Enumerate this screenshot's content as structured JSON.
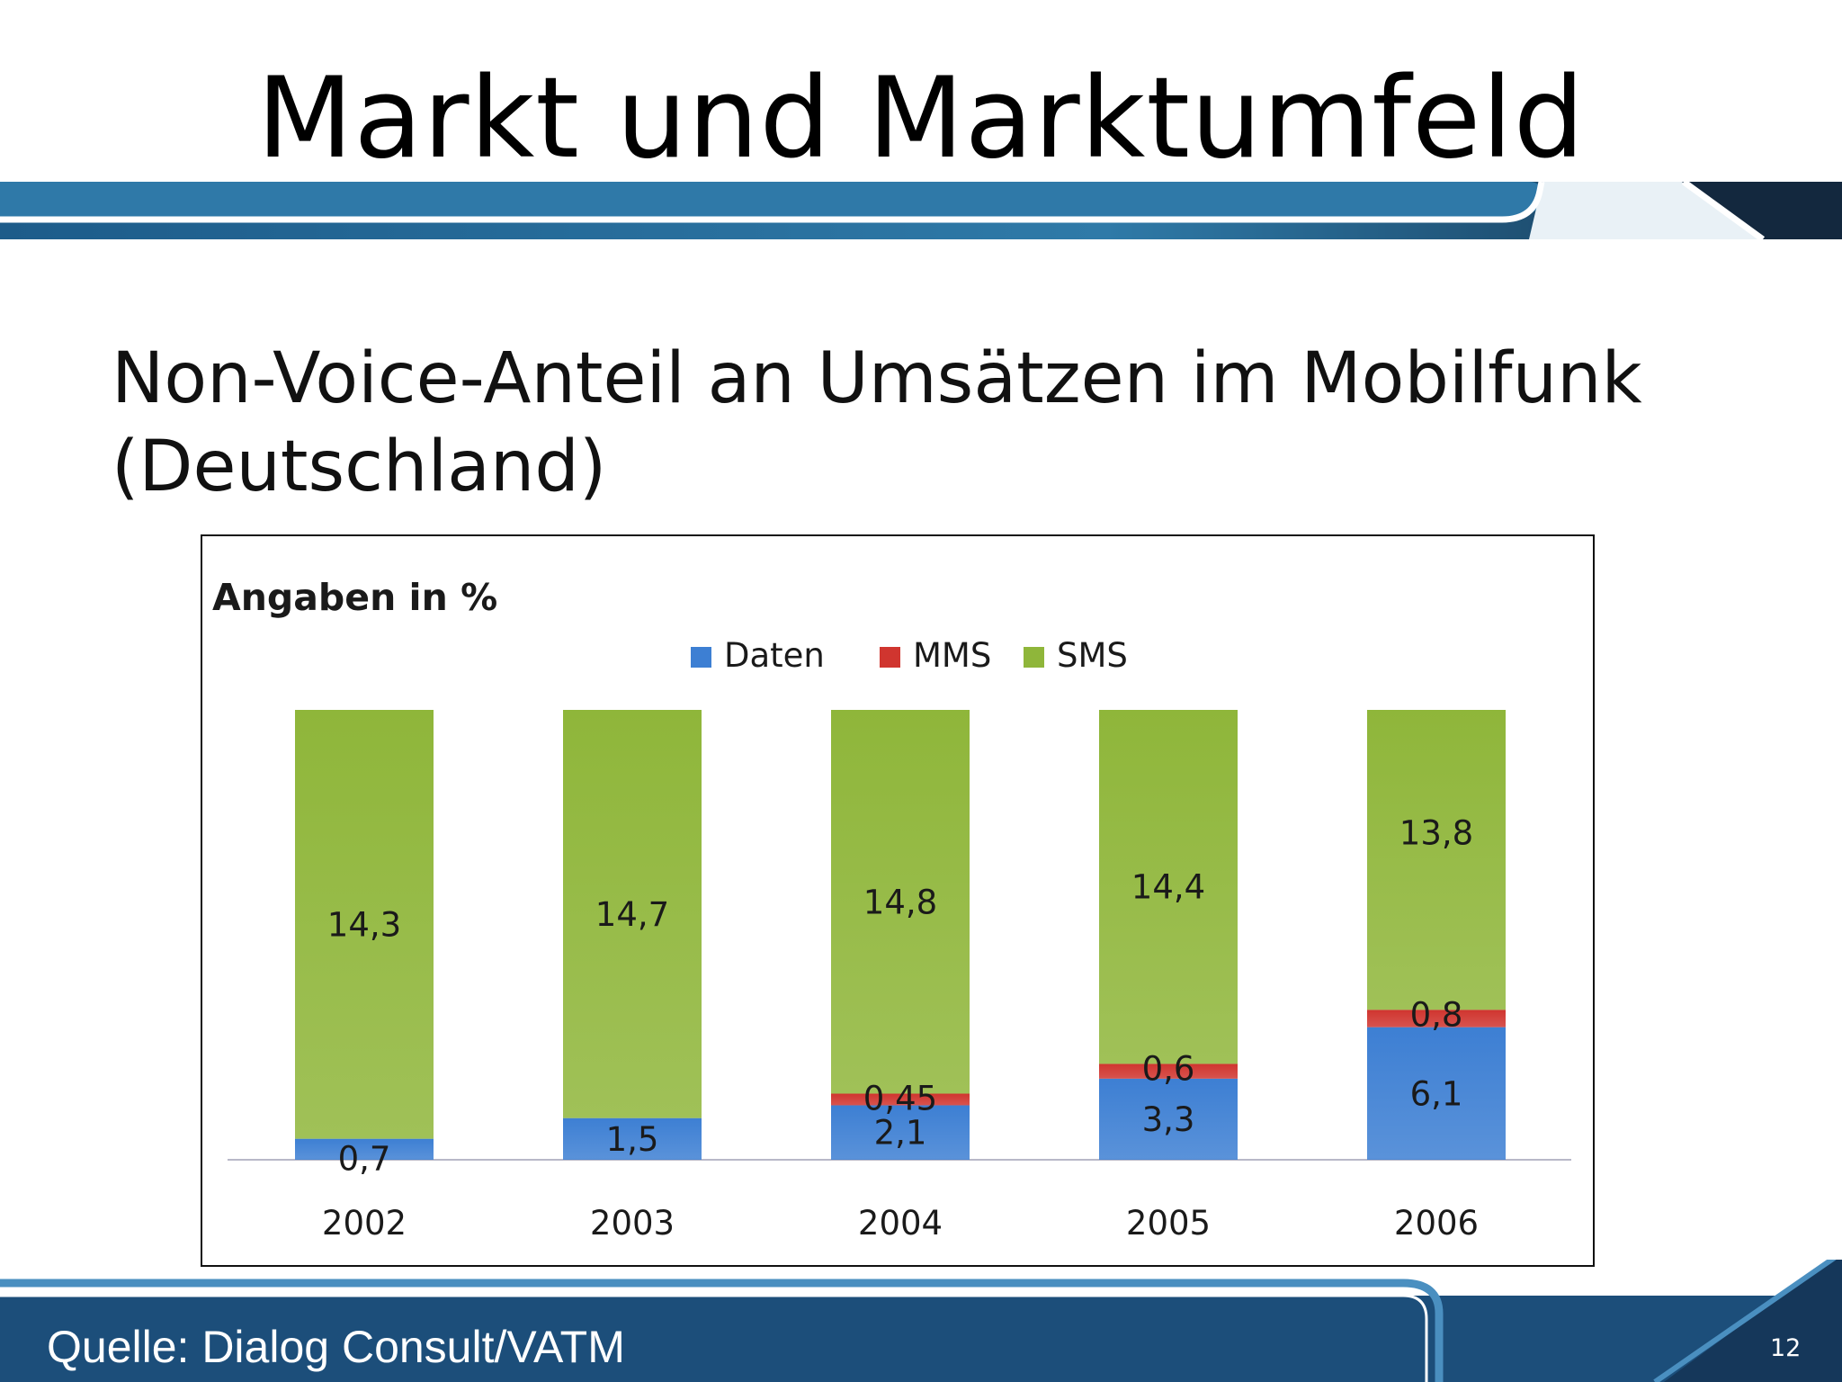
{
  "slide": {
    "title": "Markt und Marktumfeld",
    "subtitle_line1": "Non-Voice-Anteil an Umsätzen im Mobilfunk",
    "subtitle_line2": "(Deutschland)",
    "source": "Quelle: Dialog Consult/VATM",
    "page_number": "12"
  },
  "colors": {
    "band_dark": "#1a4a70",
    "band_light": "#3a86b2",
    "daten": "#3d7fd3",
    "mms": "#d0352f",
    "sms": "#8fb63a"
  },
  "chart_data": {
    "type": "bar",
    "stacked": true,
    "title": "Angaben in %",
    "categories": [
      "2002",
      "2003",
      "2004",
      "2005",
      "2006"
    ],
    "series": [
      {
        "name": "Daten",
        "values": [
          0.7,
          1.5,
          2.1,
          3.3,
          6.1
        ],
        "labels": [
          "0,7",
          "1,5",
          "2,1",
          "3,3",
          "6,1"
        ],
        "color": "#3d7fd3"
      },
      {
        "name": "MMS",
        "values": [
          null,
          null,
          0.45,
          0.6,
          0.8
        ],
        "labels": [
          "",
          "",
          "0,45",
          "0,6",
          "0,8"
        ],
        "color": "#d0352f"
      },
      {
        "name": "SMS",
        "values": [
          14.3,
          14.7,
          14.8,
          14.4,
          13.8
        ],
        "labels": [
          "14,3",
          "14,7",
          "14,8",
          "14,4",
          "13,8"
        ],
        "color": "#8fb63a"
      }
    ],
    "normalized": true,
    "legend_position": "top",
    "grid": false
  }
}
